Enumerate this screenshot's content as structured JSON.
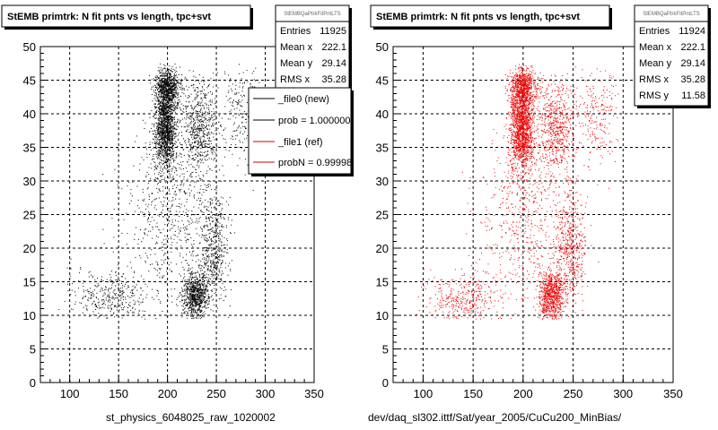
{
  "chart_data": [
    {
      "type": "scatter",
      "title": "StEMB primtrk: N fit pnts vs length, tpc+svt",
      "file_label": "st_physics_6048025_raw_1020002",
      "point_color": "#000000",
      "xlim": [
        70,
        350
      ],
      "ylim": [
        0,
        50
      ],
      "x_ticks": [
        "100",
        "150",
        "200",
        "250",
        "300",
        "350"
      ],
      "y_ticks": [
        "0",
        "5",
        "10",
        "15",
        "20",
        "25",
        "30",
        "35",
        "40",
        "45",
        "50"
      ],
      "grid": true,
      "stats": {
        "name": "StEMBQaPtrkFitPntLTS",
        "rows": [
          {
            "label": "Entries",
            "value": "11925"
          },
          {
            "label": "Mean x",
            "value": "222.1"
          },
          {
            "label": "Mean y",
            "value": "29.14"
          },
          {
            "label": "RMS x",
            "value": "35.28"
          }
        ]
      },
      "legend": {
        "placement": "top-right",
        "entries": [
          {
            "label": "_file0 (new)",
            "color": "#000000"
          },
          {
            "label": "prob = 1.000000",
            "color": "#000000"
          },
          {
            "label": "_file1 (ref)",
            "color": "#cc0000"
          },
          {
            "label": "probN = 0.99998",
            "color": "#cc0000"
          }
        ]
      }
    },
    {
      "type": "scatter",
      "title": "StEMB primtrk: N fit pnts vs length, tpc+svt",
      "file_label": "dev/daq_sl302.ittf/Sat/year_2005/CuCu200_MinBias/",
      "point_color": "#ee0000",
      "xlim": [
        70,
        350
      ],
      "ylim": [
        0,
        50
      ],
      "x_ticks": [
        "100",
        "150",
        "200",
        "250",
        "300",
        "350"
      ],
      "y_ticks": [
        "0",
        "5",
        "10",
        "15",
        "20",
        "25",
        "30",
        "35",
        "40",
        "45",
        "50"
      ],
      "grid": true,
      "stats": {
        "name": "StEMBQaPtrkFitPntLTS",
        "rows": [
          {
            "label": "Entries",
            "value": "11924"
          },
          {
            "label": "Mean x",
            "value": "222.1"
          },
          {
            "label": "Mean y",
            "value": "29.14"
          },
          {
            "label": "RMS x",
            "value": "35.28"
          },
          {
            "label": "RMS y",
            "value": "11.58"
          }
        ]
      }
    }
  ]
}
